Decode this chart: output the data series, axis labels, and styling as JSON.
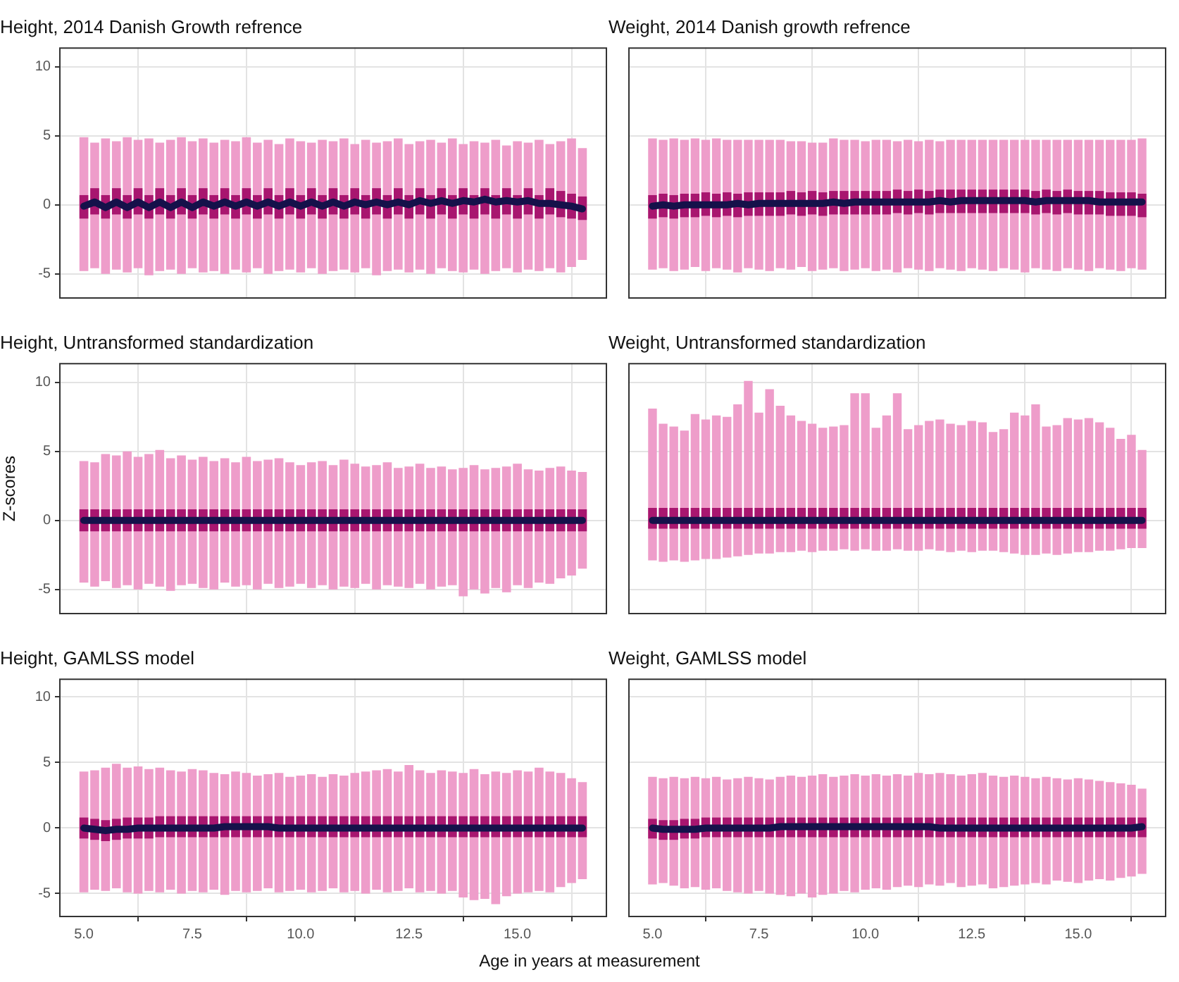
{
  "chart_data": [
    {
      "type": "bar",
      "title": "Height, 2014 Danish Growth refrence",
      "tick_labels": "y",
      "grid": true,
      "xlim": [
        4.43,
        17.07
      ],
      "ylim": [
        -6.8,
        11.4
      ],
      "xticks": [
        5,
        7.5,
        10,
        12.5,
        15
      ],
      "yticks": [
        -5,
        0,
        5,
        10
      ],
      "x": [
        5,
        5.25,
        5.5,
        5.75,
        6,
        6.25,
        6.5,
        6.75,
        7,
        7.25,
        7.5,
        7.75,
        8,
        8.25,
        8.5,
        8.75,
        9,
        9.25,
        9.5,
        9.75,
        10,
        10.25,
        10.5,
        10.75,
        11,
        11.25,
        11.5,
        11.75,
        12,
        12.25,
        12.5,
        12.75,
        13,
        13.25,
        13.5,
        13.75,
        14,
        14.25,
        14.5,
        14.75,
        15,
        15.25,
        15.5,
        15.75,
        16,
        16.25,
        16.5
      ],
      "series": [
        {
          "type": "bar",
          "color": "#ee9dca",
          "base": [
            -4.8,
            -4.6,
            -5.0,
            -4.7,
            -4.9,
            -4.6,
            -5.1,
            -4.8,
            -4.7,
            -5.0,
            -4.6,
            -4.9,
            -4.8,
            -5.0,
            -4.7,
            -4.9,
            -4.6,
            -5.0,
            -4.8,
            -4.7,
            -4.9,
            -4.6,
            -5.0,
            -4.8,
            -4.7,
            -4.9,
            -4.6,
            -5.1,
            -4.8,
            -4.7,
            -4.9,
            -4.7,
            -5.0,
            -4.6,
            -4.8,
            -4.9,
            -4.7,
            -5.0,
            -4.8,
            -4.6,
            -4.9,
            -4.7,
            -4.8,
            -4.6,
            -4.9,
            -4.5,
            -4.0
          ],
          "values": [
            9.7,
            9.1,
            9.8,
            9.3,
            9.8,
            9.3,
            9.9,
            9.3,
            9.4,
            9.9,
            9.2,
            9.7,
            9.3,
            9.7,
            9.3,
            9.8,
            9.1,
            9.7,
            9.2,
            9.5,
            9.5,
            9.1,
            9.7,
            9.4,
            9.5,
            9.3,
            9.3,
            9.6,
            9.4,
            9.5,
            9.3,
            9.3,
            9.7,
            9.1,
            9.6,
            9.3,
            9.3,
            9.5,
            9.5,
            8.9,
            9.5,
            9.2,
            9.5,
            9.0,
            9.5,
            9.3,
            8.1
          ]
        },
        {
          "type": "bar",
          "color": "#a8166f",
          "base": [
            -1.0,
            -0.7,
            -1.0,
            -0.7,
            -1.0,
            -0.7,
            -1.0,
            -0.7,
            -1.0,
            -0.7,
            -1.0,
            -0.7,
            -1.0,
            -0.7,
            -1.0,
            -0.7,
            -1.0,
            -0.7,
            -1.0,
            -0.7,
            -1.0,
            -0.7,
            -1.0,
            -0.7,
            -1.0,
            -0.7,
            -1.0,
            -0.7,
            -1.0,
            -0.7,
            -1.0,
            -0.7,
            -1.0,
            -0.7,
            -1.0,
            -0.7,
            -1.0,
            -0.7,
            -1.0,
            -0.7,
            -1.0,
            -0.7,
            -1.0,
            -0.7,
            -0.9,
            -1.0,
            -1.1
          ],
          "values": [
            1.7,
            1.9,
            1.7,
            1.9,
            1.7,
            1.9,
            1.7,
            1.9,
            1.7,
            1.9,
            1.7,
            1.9,
            1.7,
            1.9,
            1.7,
            1.9,
            1.7,
            1.9,
            1.7,
            1.9,
            1.7,
            1.9,
            1.7,
            1.9,
            1.7,
            1.9,
            1.7,
            1.9,
            1.7,
            1.9,
            1.7,
            1.9,
            1.7,
            1.9,
            1.7,
            1.9,
            1.7,
            1.9,
            1.7,
            1.9,
            1.7,
            1.9,
            1.7,
            1.9,
            1.9,
            1.8,
            1.7
          ]
        },
        {
          "type": "line",
          "color": "#15114a",
          "values": [
            -0.1,
            0.2,
            -0.2,
            0.2,
            -0.2,
            0.2,
            -0.2,
            0.2,
            -0.2,
            0.2,
            -0.2,
            0.2,
            -0.1,
            0.2,
            -0.1,
            0.2,
            -0.1,
            0.2,
            -0.1,
            0.2,
            -0.1,
            0.2,
            -0.1,
            0.2,
            -0.1,
            0.2,
            0,
            0.2,
            0,
            0.2,
            0,
            0.3,
            0.1,
            0.3,
            0.1,
            0.3,
            0.2,
            0.4,
            0.2,
            0.3,
            0.2,
            0.3,
            0.1,
            0.1,
            0,
            -0.1,
            -0.3
          ]
        }
      ]
    },
    {
      "type": "bar",
      "title": "Weight, 2014 Danish growth refrence",
      "tick_labels": false,
      "grid": true,
      "xlim": [
        4.43,
        17.07
      ],
      "ylim": [
        -6.8,
        11.4
      ],
      "xticks": [
        5,
        7.5,
        10,
        12.5,
        15
      ],
      "yticks": [
        -5,
        0,
        5,
        10
      ],
      "x": [
        5,
        5.25,
        5.5,
        5.75,
        6,
        6.25,
        6.5,
        6.75,
        7,
        7.25,
        7.5,
        7.75,
        8,
        8.25,
        8.5,
        8.75,
        9,
        9.25,
        9.5,
        9.75,
        10,
        10.25,
        10.5,
        10.75,
        11,
        11.25,
        11.5,
        11.75,
        12,
        12.25,
        12.5,
        12.75,
        13,
        13.25,
        13.5,
        13.75,
        14,
        14.25,
        14.5,
        14.75,
        15,
        15.25,
        15.5,
        15.75,
        16,
        16.25,
        16.5
      ],
      "series": [
        {
          "type": "bar",
          "color": "#ee9dca",
          "base": [
            -4.7,
            -4.6,
            -4.8,
            -4.7,
            -4.5,
            -4.8,
            -4.6,
            -4.7,
            -4.9,
            -4.6,
            -4.7,
            -4.8,
            -4.6,
            -4.7,
            -4.5,
            -4.8,
            -4.7,
            -4.6,
            -4.8,
            -4.7,
            -4.6,
            -4.8,
            -4.7,
            -4.9,
            -4.6,
            -4.7,
            -4.8,
            -4.6,
            -4.7,
            -4.8,
            -4.6,
            -4.7,
            -4.8,
            -4.6,
            -4.7,
            -4.9,
            -4.6,
            -4.7,
            -4.8,
            -4.6,
            -4.7,
            -4.8,
            -4.6,
            -4.7,
            -4.8,
            -4.6,
            -4.7
          ],
          "values": [
            9.5,
            9.3,
            9.6,
            9.4,
            9.3,
            9.5,
            9.4,
            9.4,
            9.6,
            9.3,
            9.4,
            9.5,
            9.3,
            9.3,
            9.1,
            9.3,
            9.2,
            9.4,
            9.5,
            9.4,
            9.2,
            9.5,
            9.4,
            9.5,
            9.3,
            9.3,
            9.5,
            9.2,
            9.4,
            9.5,
            9.3,
            9.4,
            9.5,
            9.3,
            9.4,
            9.6,
            9.3,
            9.4,
            9.5,
            9.3,
            9.4,
            9.5,
            9.3,
            9.4,
            9.5,
            9.3,
            9.5
          ]
        },
        {
          "type": "bar",
          "color": "#a8166f",
          "base": [
            -1.0,
            -0.9,
            -1.0,
            -0.9,
            -0.9,
            -0.8,
            -0.9,
            -0.8,
            -0.9,
            -0.8,
            -0.8,
            -0.8,
            -0.8,
            -0.7,
            -0.8,
            -0.7,
            -0.8,
            -0.7,
            -0.7,
            -0.7,
            -0.7,
            -0.7,
            -0.7,
            -0.6,
            -0.7,
            -0.6,
            -0.7,
            -0.6,
            -0.6,
            -0.6,
            -0.6,
            -0.6,
            -0.6,
            -0.6,
            -0.6,
            -0.6,
            -0.7,
            -0.6,
            -0.7,
            -0.6,
            -0.7,
            -0.7,
            -0.7,
            -0.8,
            -0.8,
            -0.8,
            -0.9
          ],
          "values": [
            1.7,
            1.7,
            1.7,
            1.7,
            1.7,
            1.7,
            1.7,
            1.7,
            1.7,
            1.7,
            1.7,
            1.7,
            1.7,
            1.7,
            1.7,
            1.7,
            1.7,
            1.7,
            1.7,
            1.7,
            1.7,
            1.7,
            1.7,
            1.7,
            1.7,
            1.7,
            1.7,
            1.7,
            1.7,
            1.7,
            1.7,
            1.7,
            1.7,
            1.7,
            1.7,
            1.7,
            1.7,
            1.7,
            1.7,
            1.7,
            1.7,
            1.7,
            1.7,
            1.7,
            1.7,
            1.7,
            1.7
          ]
        },
        {
          "type": "line",
          "color": "#15114a",
          "values": [
            -0.1,
            0,
            -0.1,
            0,
            0,
            0,
            0,
            0,
            0.1,
            0,
            0.1,
            0.1,
            0.1,
            0.1,
            0.1,
            0.1,
            0.1,
            0.2,
            0.1,
            0.2,
            0.2,
            0.2,
            0.2,
            0.2,
            0.2,
            0.2,
            0.2,
            0.3,
            0.2,
            0.3,
            0.3,
            0.3,
            0.3,
            0.3,
            0.3,
            0.3,
            0.2,
            0.3,
            0.3,
            0.3,
            0.3,
            0.3,
            0.2,
            0.2,
            0.2,
            0.2,
            0.2
          ]
        }
      ]
    },
    {
      "type": "bar",
      "title": "Height, Untransformed standardization",
      "ylabel": "Z-scores",
      "tick_labels": "y",
      "grid": true,
      "xlim": [
        4.43,
        17.07
      ],
      "ylim": [
        -6.8,
        11.4
      ],
      "xticks": [
        5,
        7.5,
        10,
        12.5,
        15
      ],
      "yticks": [
        -5,
        0,
        5,
        10
      ],
      "x": [
        5,
        5.25,
        5.5,
        5.75,
        6,
        6.25,
        6.5,
        6.75,
        7,
        7.25,
        7.5,
        7.75,
        8,
        8.25,
        8.5,
        8.75,
        9,
        9.25,
        9.5,
        9.75,
        10,
        10.25,
        10.5,
        10.75,
        11,
        11.25,
        11.5,
        11.75,
        12,
        12.25,
        12.5,
        12.75,
        13,
        13.25,
        13.5,
        13.75,
        14,
        14.25,
        14.5,
        14.75,
        15,
        15.25,
        15.5,
        15.75,
        16,
        16.25,
        16.5
      ],
      "series": [
        {
          "type": "bar",
          "color": "#ee9dca",
          "base": [
            -4.5,
            -4.8,
            -4.4,
            -4.9,
            -4.7,
            -5.0,
            -4.6,
            -4.8,
            -5.1,
            -4.7,
            -4.6,
            -4.9,
            -5.0,
            -4.5,
            -4.8,
            -4.7,
            -5.0,
            -4.6,
            -4.9,
            -4.8,
            -4.6,
            -4.9,
            -4.7,
            -5.0,
            -4.8,
            -4.9,
            -4.6,
            -5.0,
            -4.7,
            -4.8,
            -4.9,
            -4.6,
            -5.0,
            -4.8,
            -4.7,
            -5.5,
            -5.0,
            -5.3,
            -4.9,
            -5.2,
            -4.7,
            -4.9,
            -4.5,
            -4.6,
            -4.2,
            -4.0,
            -3.5
          ],
          "values": [
            8.8,
            9.0,
            9.2,
            9.6,
            9.7,
            9.6,
            9.4,
            9.9,
            9.6,
            9.4,
            9.0,
            9.5,
            9.3,
            9.0,
            9.0,
            9.3,
            9.3,
            9.0,
            9.4,
            9.0,
            8.6,
            9.1,
            9.0,
            9.0,
            9.2,
            9.0,
            8.5,
            9.0,
            8.9,
            8.6,
            8.8,
            8.7,
            8.8,
            8.7,
            8.4,
            9.3,
            9.0,
            9.0,
            8.7,
            9.1,
            8.8,
            8.6,
            8.1,
            8.4,
            8.1,
            7.6,
            7.0
          ]
        },
        {
          "type": "bar",
          "color": "#a8166f",
          "base": [
            -0.8,
            -0.8,
            -0.8,
            -0.8,
            -0.8,
            -0.8,
            -0.8,
            -0.8,
            -0.8,
            -0.8,
            -0.8,
            -0.8,
            -0.8,
            -0.8,
            -0.8,
            -0.8,
            -0.8,
            -0.8,
            -0.8,
            -0.8,
            -0.8,
            -0.8,
            -0.8,
            -0.8,
            -0.8,
            -0.8,
            -0.8,
            -0.8,
            -0.8,
            -0.8,
            -0.8,
            -0.8,
            -0.8,
            -0.8,
            -0.8,
            -0.8,
            -0.8,
            -0.8,
            -0.8,
            -0.8,
            -0.8,
            -0.8,
            -0.8,
            -0.8,
            -0.8,
            -0.8,
            -0.8
          ],
          "values": [
            1.6,
            1.6,
            1.6,
            1.6,
            1.6,
            1.6,
            1.6,
            1.6,
            1.6,
            1.6,
            1.6,
            1.6,
            1.6,
            1.6,
            1.6,
            1.6,
            1.6,
            1.6,
            1.6,
            1.6,
            1.6,
            1.6,
            1.6,
            1.6,
            1.6,
            1.6,
            1.6,
            1.6,
            1.6,
            1.6,
            1.6,
            1.6,
            1.6,
            1.6,
            1.6,
            1.6,
            1.6,
            1.6,
            1.6,
            1.6,
            1.6,
            1.6,
            1.6,
            1.6,
            1.6,
            1.6,
            1.6
          ]
        },
        {
          "type": "line",
          "color": "#15114a",
          "values": [
            0,
            0,
            0,
            0,
            0,
            0,
            0,
            0,
            0,
            0,
            0,
            0,
            0,
            0,
            0,
            0,
            0,
            0,
            0,
            0,
            0,
            0,
            0,
            0,
            0,
            0,
            0,
            0,
            0,
            0,
            0,
            0,
            0,
            0,
            0,
            0,
            0,
            0,
            0,
            0,
            0,
            0,
            0,
            0,
            0,
            0,
            0
          ]
        }
      ]
    },
    {
      "type": "bar",
      "title": "Weight, Untransformed standardization",
      "tick_labels": false,
      "grid": true,
      "xlim": [
        4.43,
        17.07
      ],
      "ylim": [
        -6.8,
        11.4
      ],
      "xticks": [
        5,
        7.5,
        10,
        12.5,
        15
      ],
      "yticks": [
        -5,
        0,
        5,
        10
      ],
      "x": [
        5,
        5.25,
        5.5,
        5.75,
        6,
        6.25,
        6.5,
        6.75,
        7,
        7.25,
        7.5,
        7.75,
        8,
        8.25,
        8.5,
        8.75,
        9,
        9.25,
        9.5,
        9.75,
        10,
        10.25,
        10.5,
        10.75,
        11,
        11.25,
        11.5,
        11.75,
        12,
        12.25,
        12.5,
        12.75,
        13,
        13.25,
        13.5,
        13.75,
        14,
        14.25,
        14.5,
        14.75,
        15,
        15.25,
        15.5,
        15.75,
        16,
        16.25,
        16.5
      ],
      "series": [
        {
          "type": "bar",
          "color": "#ee9dca",
          "base": [
            -2.9,
            -3.0,
            -2.9,
            -3.0,
            -2.9,
            -2.8,
            -2.8,
            -2.7,
            -2.6,
            -2.5,
            -2.4,
            -2.4,
            -2.3,
            -2.3,
            -2.2,
            -2.3,
            -2.2,
            -2.2,
            -2.1,
            -2.2,
            -2.1,
            -2.2,
            -2.2,
            -2.1,
            -2.2,
            -2.2,
            -2.1,
            -2.2,
            -2.3,
            -2.2,
            -2.3,
            -2.2,
            -2.2,
            -2.3,
            -2.4,
            -2.5,
            -2.5,
            -2.4,
            -2.5,
            -2.4,
            -2.3,
            -2.3,
            -2.2,
            -2.2,
            -2.1,
            -2.0,
            -2.0
          ],
          "values": [
            11.0,
            10.0,
            9.7,
            9.5,
            10.6,
            10.1,
            10.4,
            10.2,
            11.0,
            12.6,
            10.2,
            11.9,
            10.6,
            9.9,
            9.4,
            9.3,
            8.9,
            9.0,
            9.0,
            11.4,
            11.3,
            8.9,
            9.8,
            11.3,
            8.8,
            9.1,
            9.3,
            9.5,
            9.3,
            9.1,
            9.5,
            9.3,
            8.6,
            8.9,
            10.2,
            10.1,
            10.9,
            9.2,
            9.4,
            9.8,
            9.6,
            9.7,
            9.3,
            8.9,
            8.0,
            8.2,
            7.1
          ]
        },
        {
          "type": "bar",
          "color": "#a8166f",
          "base": [
            -0.6,
            -0.6,
            -0.6,
            -0.6,
            -0.6,
            -0.6,
            -0.6,
            -0.6,
            -0.6,
            -0.6,
            -0.6,
            -0.6,
            -0.6,
            -0.6,
            -0.6,
            -0.6,
            -0.6,
            -0.6,
            -0.6,
            -0.6,
            -0.6,
            -0.6,
            -0.6,
            -0.6,
            -0.6,
            -0.6,
            -0.6,
            -0.6,
            -0.6,
            -0.6,
            -0.6,
            -0.6,
            -0.6,
            -0.6,
            -0.6,
            -0.6,
            -0.6,
            -0.6,
            -0.6,
            -0.6,
            -0.6,
            -0.6,
            -0.6,
            -0.6,
            -0.6,
            -0.6,
            -0.6
          ],
          "values": [
            1.5,
            1.5,
            1.5,
            1.5,
            1.5,
            1.5,
            1.5,
            1.5,
            1.5,
            1.5,
            1.5,
            1.5,
            1.5,
            1.5,
            1.5,
            1.5,
            1.5,
            1.5,
            1.5,
            1.5,
            1.5,
            1.5,
            1.5,
            1.5,
            1.5,
            1.5,
            1.5,
            1.5,
            1.5,
            1.5,
            1.5,
            1.5,
            1.5,
            1.5,
            1.5,
            1.5,
            1.5,
            1.5,
            1.5,
            1.5,
            1.5,
            1.5,
            1.5,
            1.5,
            1.5,
            1.5,
            1.5
          ]
        },
        {
          "type": "line",
          "color": "#15114a",
          "values": [
            0,
            0,
            0,
            0,
            0,
            0,
            0,
            0,
            0,
            0,
            0,
            0,
            0,
            0,
            0,
            0,
            0,
            0,
            0,
            0,
            0,
            0,
            0,
            0,
            0,
            0,
            0,
            0,
            0,
            0,
            0,
            0,
            0,
            0,
            0,
            0,
            0,
            0,
            0,
            0,
            0,
            0,
            0,
            0,
            0,
            0,
            0
          ]
        }
      ]
    },
    {
      "type": "bar",
      "title": "Height, GAMLSS model",
      "xlabel": "Age in years at measurement",
      "grid": true,
      "xlim": [
        4.43,
        17.07
      ],
      "ylim": [
        -6.8,
        11.4
      ],
      "xticks": [
        {
          "value": 5,
          "label": "5.0"
        },
        {
          "value": 7.5,
          "label": "7.5"
        },
        {
          "value": 10,
          "label": "10.0"
        },
        {
          "value": 12.5,
          "label": "12.5"
        },
        {
          "value": 15,
          "label": "15.0"
        }
      ],
      "yticks": [
        -5,
        0,
        5,
        10
      ],
      "x": [
        5,
        5.25,
        5.5,
        5.75,
        6,
        6.25,
        6.5,
        6.75,
        7,
        7.25,
        7.5,
        7.75,
        8,
        8.25,
        8.5,
        8.75,
        9,
        9.25,
        9.5,
        9.75,
        10,
        10.25,
        10.5,
        10.75,
        11,
        11.25,
        11.5,
        11.75,
        12,
        12.25,
        12.5,
        12.75,
        13,
        13.25,
        13.5,
        13.75,
        14,
        14.25,
        14.5,
        14.75,
        15,
        15.25,
        15.5,
        15.75,
        16,
        16.25,
        16.5
      ],
      "series": [
        {
          "type": "bar",
          "color": "#ee9dca",
          "base": [
            -4.9,
            -4.7,
            -4.8,
            -4.6,
            -4.9,
            -5.0,
            -4.8,
            -4.9,
            -4.7,
            -5.0,
            -4.8,
            -4.9,
            -4.7,
            -5.1,
            -4.8,
            -4.9,
            -4.8,
            -4.6,
            -4.9,
            -4.8,
            -4.7,
            -4.9,
            -4.8,
            -4.6,
            -4.9,
            -4.8,
            -5.0,
            -4.7,
            -4.9,
            -4.8,
            -4.6,
            -4.9,
            -4.8,
            -5.0,
            -4.8,
            -5.3,
            -5.5,
            -5.4,
            -5.8,
            -5.2,
            -5.0,
            -4.9,
            -4.8,
            -4.9,
            -4.5,
            -4.2,
            -3.9
          ],
          "values": [
            9.2,
            9.1,
            9.4,
            9.5,
            9.5,
            9.7,
            9.3,
            9.5,
            9.1,
            9.3,
            9.3,
            9.3,
            8.9,
            9.2,
            9.1,
            9.1,
            8.8,
            8.7,
            9.1,
            8.7,
            8.7,
            9.0,
            8.7,
            8.7,
            8.9,
            9.0,
            9.3,
            9.1,
            9.4,
            9.1,
            9.4,
            9.3,
            9.0,
            9.4,
            9.1,
            9.5,
            10.0,
            9.5,
            10.1,
            9.4,
            9.4,
            9.2,
            9.4,
            9.2,
            8.7,
            8.0,
            7.4
          ]
        },
        {
          "type": "bar",
          "color": "#a8166f",
          "base": [
            -0.8,
            -0.9,
            -1.0,
            -0.9,
            -0.8,
            -0.8,
            -0.8,
            -0.7,
            -0.7,
            -0.7,
            -0.7,
            -0.7,
            -0.7,
            -0.7,
            -0.7,
            -0.7,
            -0.7,
            -0.7,
            -0.7,
            -0.7,
            -0.7,
            -0.7,
            -0.7,
            -0.7,
            -0.7,
            -0.7,
            -0.7,
            -0.7,
            -0.7,
            -0.7,
            -0.7,
            -0.7,
            -0.7,
            -0.7,
            -0.7,
            -0.7,
            -0.7,
            -0.7,
            -0.7,
            -0.7,
            -0.7,
            -0.7,
            -0.7,
            -0.7,
            -0.7,
            -0.7,
            -0.7
          ],
          "values": [
            1.6,
            1.6,
            1.6,
            1.6,
            1.6,
            1.6,
            1.6,
            1.6,
            1.6,
            1.6,
            1.6,
            1.6,
            1.6,
            1.6,
            1.6,
            1.6,
            1.6,
            1.6,
            1.6,
            1.6,
            1.6,
            1.6,
            1.6,
            1.6,
            1.6,
            1.6,
            1.6,
            1.6,
            1.6,
            1.6,
            1.6,
            1.6,
            1.6,
            1.6,
            1.6,
            1.6,
            1.6,
            1.6,
            1.6,
            1.6,
            1.6,
            1.6,
            1.6,
            1.6,
            1.6,
            1.6,
            1.6
          ]
        },
        {
          "type": "line",
          "color": "#15114a",
          "values": [
            0,
            -0.1,
            -0.2,
            -0.1,
            -0.1,
            0,
            0,
            0,
            0,
            0,
            0,
            0,
            0,
            0.1,
            0.1,
            0.1,
            0.1,
            0.1,
            0,
            0,
            0,
            0,
            0,
            0,
            0,
            0,
            0,
            0,
            0,
            0,
            0,
            0,
            0,
            0,
            0,
            0,
            0,
            0,
            0,
            0,
            0,
            0,
            0,
            0,
            0,
            0,
            0
          ]
        }
      ]
    },
    {
      "type": "bar",
      "title": "Weight, GAMLSS model",
      "tick_labels": "x",
      "grid": true,
      "xlim": [
        4.43,
        17.07
      ],
      "ylim": [
        -6.8,
        11.4
      ],
      "xticks": [
        {
          "value": 5,
          "label": "5.0"
        },
        {
          "value": 7.5,
          "label": "7.5"
        },
        {
          "value": 10,
          "label": "10.0"
        },
        {
          "value": 12.5,
          "label": "12.5"
        },
        {
          "value": 15,
          "label": "15.0"
        }
      ],
      "yticks": [
        -5,
        0,
        5,
        10
      ],
      "x": [
        5,
        5.25,
        5.5,
        5.75,
        6,
        6.25,
        6.5,
        6.75,
        7,
        7.25,
        7.5,
        7.75,
        8,
        8.25,
        8.5,
        8.75,
        9,
        9.25,
        9.5,
        9.75,
        10,
        10.25,
        10.5,
        10.75,
        11,
        11.25,
        11.5,
        11.75,
        12,
        12.25,
        12.5,
        12.75,
        13,
        13.25,
        13.5,
        13.75,
        14,
        14.25,
        14.5,
        14.75,
        15,
        15.25,
        15.5,
        15.75,
        16,
        16.25,
        16.5
      ],
      "series": [
        {
          "type": "bar",
          "color": "#ee9dca",
          "base": [
            -4.3,
            -4.2,
            -4.4,
            -4.6,
            -4.5,
            -4.7,
            -4.6,
            -4.8,
            -4.9,
            -5.0,
            -4.8,
            -5.0,
            -5.1,
            -5.2,
            -5.0,
            -5.3,
            -5.1,
            -5.0,
            -4.8,
            -4.9,
            -4.7,
            -4.6,
            -4.7,
            -4.5,
            -4.4,
            -4.5,
            -4.3,
            -4.4,
            -4.2,
            -4.5,
            -4.4,
            -4.3,
            -4.6,
            -4.5,
            -4.4,
            -4.3,
            -4.2,
            -4.3,
            -4.0,
            -4.1,
            -4.2,
            -4.0,
            -3.9,
            -4.0,
            -3.8,
            -3.7,
            -3.5
          ],
          "values": [
            8.2,
            8.0,
            8.3,
            8.4,
            8.4,
            8.5,
            8.5,
            8.5,
            8.7,
            8.9,
            8.6,
            8.7,
            9.0,
            9.2,
            8.9,
            9.3,
            9.2,
            8.9,
            8.8,
            9.0,
            8.7,
            8.7,
            8.7,
            8.6,
            8.4,
            8.7,
            8.4,
            8.6,
            8.3,
            8.5,
            8.5,
            8.5,
            8.6,
            8.4,
            8.4,
            8.2,
            8.0,
            8.2,
            7.8,
            7.8,
            8.0,
            7.7,
            7.5,
            7.5,
            7.2,
            7.0,
            6.5
          ]
        },
        {
          "type": "bar",
          "color": "#a8166f",
          "base": [
            -0.8,
            -0.9,
            -0.9,
            -0.8,
            -0.8,
            -0.7,
            -0.7,
            -0.7,
            -0.7,
            -0.7,
            -0.7,
            -0.7,
            -0.7,
            -0.7,
            -0.7,
            -0.7,
            -0.7,
            -0.7,
            -0.7,
            -0.7,
            -0.7,
            -0.7,
            -0.7,
            -0.7,
            -0.7,
            -0.7,
            -0.7,
            -0.7,
            -0.7,
            -0.7,
            -0.7,
            -0.7,
            -0.7,
            -0.7,
            -0.7,
            -0.7,
            -0.7,
            -0.7,
            -0.7,
            -0.7,
            -0.7,
            -0.7,
            -0.7,
            -0.7,
            -0.7,
            -0.7,
            -0.7
          ],
          "values": [
            1.5,
            1.5,
            1.5,
            1.5,
            1.5,
            1.5,
            1.5,
            1.5,
            1.5,
            1.5,
            1.5,
            1.5,
            1.5,
            1.5,
            1.5,
            1.5,
            1.5,
            1.5,
            1.5,
            1.5,
            1.5,
            1.5,
            1.5,
            1.5,
            1.5,
            1.5,
            1.5,
            1.5,
            1.5,
            1.5,
            1.5,
            1.5,
            1.5,
            1.5,
            1.5,
            1.5,
            1.5,
            1.5,
            1.5,
            1.5,
            1.5,
            1.5,
            1.5,
            1.5,
            1.5,
            1.5,
            1.5
          ]
        },
        {
          "type": "line",
          "color": "#15114a",
          "values": [
            0,
            -0.1,
            -0.1,
            -0.1,
            -0.1,
            0,
            0,
            0,
            0,
            0,
            0,
            0,
            0.1,
            0.1,
            0.1,
            0.1,
            0.1,
            0.1,
            0.1,
            0.1,
            0.1,
            0.1,
            0.1,
            0.1,
            0.1,
            0.1,
            0.1,
            0,
            0,
            0,
            0,
            0,
            0,
            0,
            0,
            0,
            0,
            0,
            0,
            0,
            0,
            0,
            0,
            0,
            0,
            0,
            0.1
          ]
        }
      ]
    }
  ]
}
